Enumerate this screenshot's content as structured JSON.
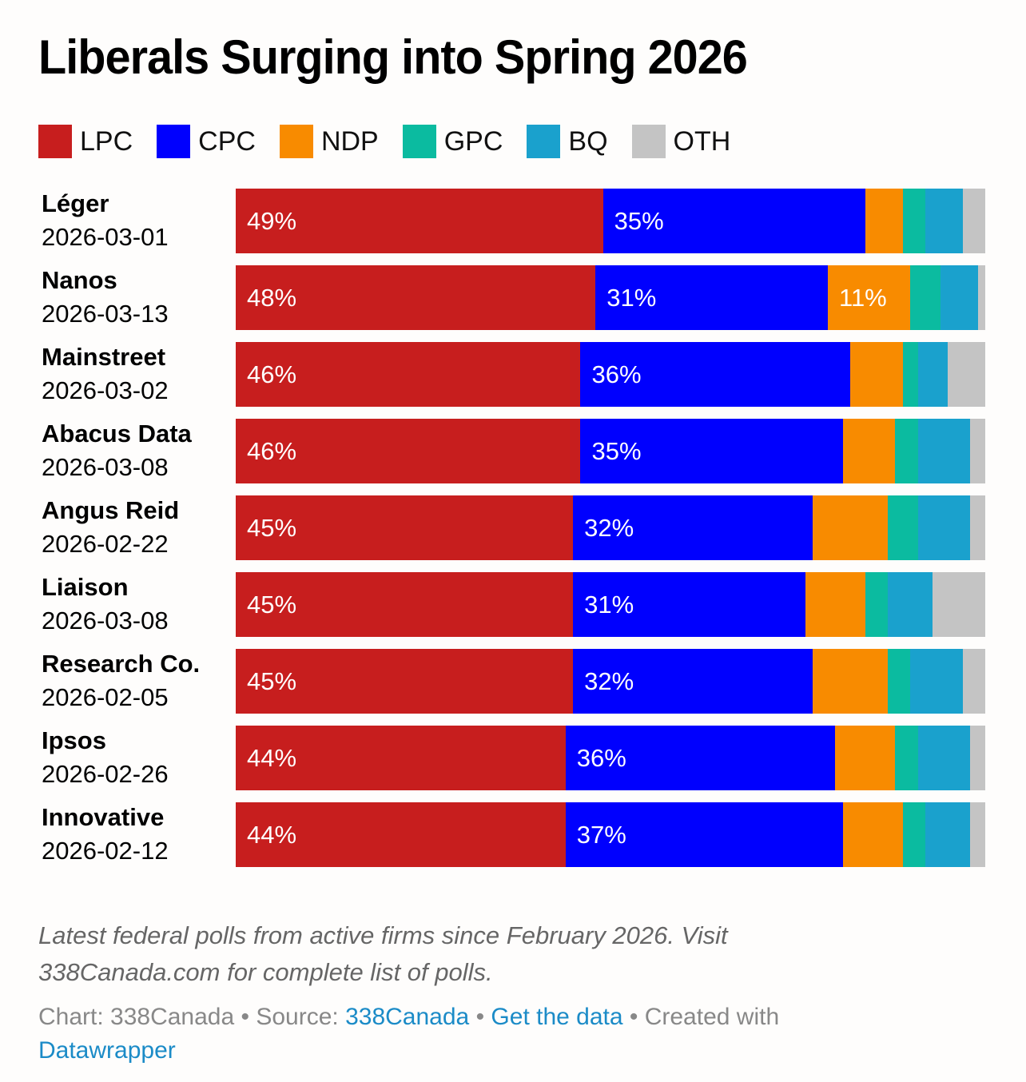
{
  "chart_data": {
    "type": "bar",
    "orientation": "horizontal-stacked",
    "title": "Liberals Surging into Spring 2026",
    "xlim": [
      0,
      100
    ],
    "legend_position": "top-left",
    "parties": [
      {
        "key": "LPC",
        "color": "#c71e1e"
      },
      {
        "key": "CPC",
        "color": "#0000fe"
      },
      {
        "key": "NDP",
        "color": "#f88b00"
      },
      {
        "key": "GPC",
        "color": "#0bbba0"
      },
      {
        "key": "BQ",
        "color": "#1aa1cd"
      },
      {
        "key": "OTH",
        "color": "#c4c4c4"
      }
    ],
    "rows": [
      {
        "firm": "Léger",
        "date": "2026-03-01",
        "values": [
          49,
          35,
          5,
          3,
          5,
          3
        ],
        "labels": [
          "49%",
          "35%",
          "",
          "",
          "",
          ""
        ]
      },
      {
        "firm": "Nanos",
        "date": "2026-03-13",
        "values": [
          48,
          31,
          11,
          4,
          5,
          1
        ],
        "labels": [
          "48%",
          "31%",
          "11%",
          "",
          "",
          ""
        ]
      },
      {
        "firm": "Mainstreet",
        "date": "2026-03-02",
        "values": [
          46,
          36,
          7,
          2,
          4,
          5
        ],
        "labels": [
          "46%",
          "36%",
          "",
          "",
          "",
          ""
        ]
      },
      {
        "firm": "Abacus Data",
        "date": "2026-03-08",
        "values": [
          46,
          35,
          7,
          3,
          7,
          2
        ],
        "labels": [
          "46%",
          "35%",
          "",
          "",
          "",
          ""
        ]
      },
      {
        "firm": "Angus Reid",
        "date": "2026-02-22",
        "values": [
          45,
          32,
          10,
          4,
          7,
          2
        ],
        "labels": [
          "45%",
          "32%",
          "",
          "",
          "",
          ""
        ]
      },
      {
        "firm": "Liaison",
        "date": "2026-03-08",
        "values": [
          45,
          31,
          8,
          3,
          6,
          7
        ],
        "labels": [
          "45%",
          "31%",
          "",
          "",
          "",
          ""
        ]
      },
      {
        "firm": "Research Co.",
        "date": "2026-02-05",
        "values": [
          45,
          32,
          10,
          3,
          7,
          3
        ],
        "labels": [
          "45%",
          "32%",
          "",
          "",
          "",
          ""
        ]
      },
      {
        "firm": "Ipsos",
        "date": "2026-02-26",
        "values": [
          44,
          36,
          8,
          3,
          7,
          2
        ],
        "labels": [
          "44%",
          "36%",
          "",
          "",
          "",
          ""
        ]
      },
      {
        "firm": "Innovative",
        "date": "2026-02-12",
        "values": [
          44,
          37,
          8,
          3,
          6,
          2
        ],
        "labels": [
          "44%",
          "37%",
          "",
          "",
          "",
          ""
        ]
      }
    ]
  },
  "notes": "Latest federal polls from active firms since February 2026. Visit 338Canada.com for complete list of polls.",
  "footer": {
    "chart_prefix": "Chart: 338Canada • Source: ",
    "source_link": "338Canada",
    "sep": " • ",
    "data_link": "Get the data",
    "created_with": " • Created with ",
    "tool_link": "Datawrapper"
  }
}
